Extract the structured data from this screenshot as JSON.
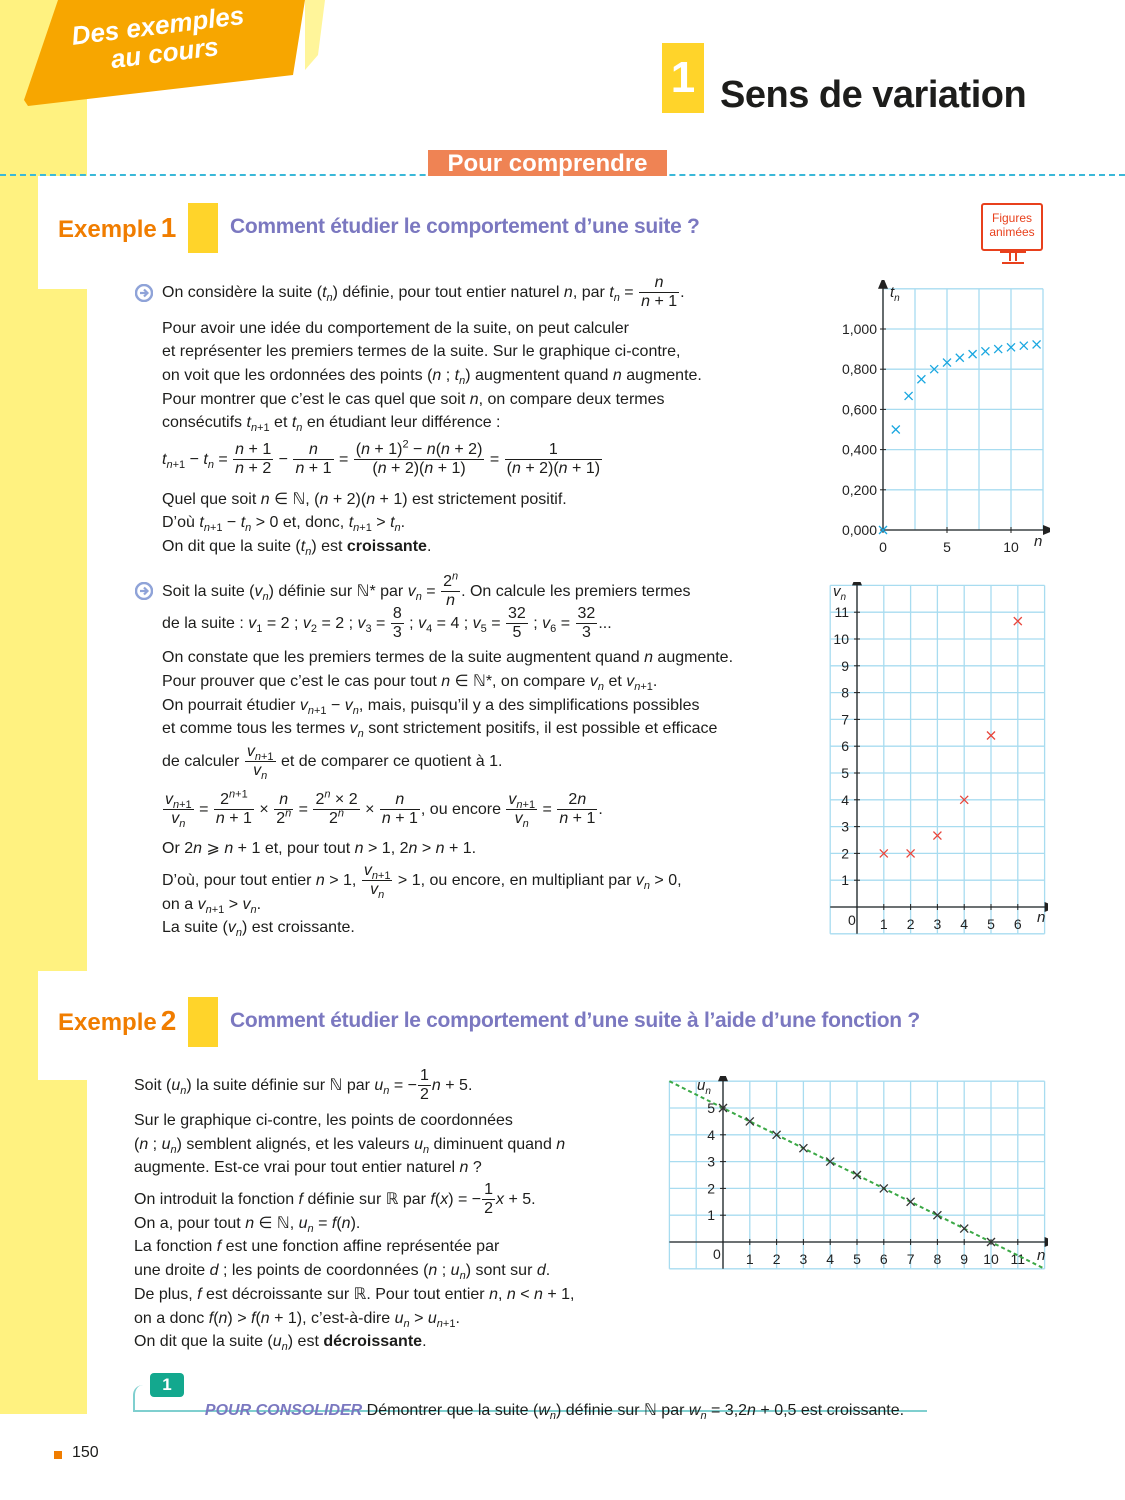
{
  "banner": {
    "line1": "Des exemples",
    "line2": "au cours",
    "color": "#f7a600"
  },
  "section": {
    "number": "1",
    "title": "Sens de variation"
  },
  "pour_comprendre": "Pour comprendre",
  "figures_animees": {
    "line1": "Figures",
    "line2": "animées",
    "icon": "monitor-icon"
  },
  "example1": {
    "label": "Exemple",
    "number": "1",
    "title": "Comment étudier le comportement d’une suite ?",
    "block1": [
      "On considère la suite (@i{t}_{@i{n}}) définie, pour tout entier naturel @i{n}, par @i{t}_{@i{n}} = @f{@i{n}}{@i{n} + 1}.",
      "Pour avoir une idée du comportement de la suite, on peut calculer",
      "et représenter les premiers termes de la suite. Sur le graphique ci-contre,",
      "on voit que les ordonnées des points (@i{n} ; @i{t}_{@i{n}}) augmentent quand @i{n} augmente.",
      "Pour montrer que c’est le cas quel que soit @i{n}, on compare deux termes",
      "consécutifs @i{t}_{@i{n}+1} et @i{t}_{@i{n}} en étudiant leur différence :",
      "@i{t}_{@i{n}+1} − @i{t}_{@i{n}} = @f{@i{n} + 1}{@i{n} + 2} − @f{@i{n}}{@i{n} + 1} = @f{(@i{n} + 1)^{2} − @i{n}(@i{n} + 2)}{(@i{n} + 2)(@i{n} + 1)} = @f{1}{(@i{n} + 2)(@i{n} + 1)}",
      "Quel que soit @i{n} ∈ ℕ, (@i{n} + 2)(@i{n} + 1) est strictement positif.",
      "D’où @i{t}_{@i{n}+1} − @i{t}_{@i{n}} > 0 et, donc, @i{t}_{@i{n}+1} > @i{t}_{@i{n}}.",
      "On dit que la suite (@i{t}_{@i{n}}) est @b{croissante}."
    ],
    "block2": [
      "Soit la suite (@i{v}_{@i{n}}) définie sur ℕ* par @i{v}_{@i{n}} = @f{2^{@i{n}}}{@i{n}}. On calcule les premiers termes",
      "de la suite : @i{v}_{1} = 2 ; @i{v}_{2} = 2 ; @i{v}_{3} = @f{8}{3} ; @i{v}_{4} = 4 ; @i{v}_{5} = @f{32}{5} ; @i{v}_{6} = @f{32}{3}...",
      "On constate que les premiers termes de la suite augmentent quand @i{n} augmente.",
      "Pour prouver que c’est le cas pour tout @i{n} ∈ ℕ*, on compare @i{v}_{@i{n}} et @i{v}_{@i{n}+1}.",
      "On pourrait étudier @i{v}_{@i{n}+1} − @i{v}_{@i{n}}, mais, puisqu’il y a des simplifications possibles",
      "et comme tous les termes @i{v}_{@i{n}} sont strictement positifs, il est possible et efficace",
      "de calculer @f{@i{v}_{@i{n}+1}}{@i{v}_{@i{n}}} et de comparer ce quotient à 1.",
      "@f{@i{v}_{@i{n}+1}}{@i{v}_{@i{n}}} = @f{2^{@i{n}+1}}{@i{n} + 1} × @f{@i{n}}{2^{@i{n}}} = @f{2^{@i{n}} × 2}{2^{@i{n}}} × @f{@i{n}}{@i{n} + 1}, ou encore @f{@i{v}_{@i{n}+1}}{@i{v}_{@i{n}}} = @f{2@i{n}}{@i{n} + 1}.",
      "Or 2@i{n} ⩾ @i{n} + 1 et, pour tout @i{n} > 1, 2@i{n} > @i{n} + 1.",
      "D’où, pour tout entier @i{n} > 1, @f{@i{v}_{@i{n}+1}}{@i{v}_{@i{n}}} > 1, ou encore, en multipliant par @i{v}_{@i{n}} > 0,",
      "on a @i{v}_{@i{n}+1} > @i{v}_{@i{n}}.",
      "La suite (@i{v}_{@i{n}}) est croissante."
    ]
  },
  "example2": {
    "label": "Exemple",
    "number": "2",
    "title": "Comment étudier le comportement d’une suite à l’aide d’une fonction ?",
    "block": [
      "Soit (@i{u}_{@i{n}}) la suite définie sur ℕ par @i{u}_{@i{n}} = −@f{1}{2}@i{n} + 5.",
      "Sur le graphique ci-contre, les points de coordonnées",
      "(@i{n} ; @i{u}_{@i{n}}) semblent alignés, et les valeurs @i{u}_{@i{n}} diminuent quand @i{n}",
      "augmente. Est-ce vrai pour tout entier naturel @i{n} ?",
      "On introduit la fonction @i{f} définie sur ℝ par @i{f}(@i{x}) = −@f{1}{2}@i{x} + 5.",
      "On a, pour tout @i{n} ∈ ℕ, @i{u}_{@i{n}} = @i{f}(@i{n}).",
      "La fonction @i{f} est une fonction affine représentée par",
      "une droite @i{d} ; les points de coordonnées (@i{n} ; @i{u}_{@i{n}}) sont sur @i{d}.",
      "De plus, @i{f} est décroissante sur ℝ. Pour tout entier @i{n}, @i{n} < @i{n} + 1,",
      "on a donc @i{f}(@i{n}) > @i{f}(@i{n} + 1), c’est-à-dire @i{u}_{@i{n}} > @i{u}_{@i{n}+1}.",
      "On dit que la suite (@i{u}_{@i{n}}) est @b{décroissante}."
    ]
  },
  "consolider": {
    "number": "1",
    "keyword": "POUR CONSOLIDER",
    "text": " Démontrer que la suite (@i{w}_{@i{n}}) définie sur ℕ par @i{w}_{@i{n}} = 3,2@i{n} + 0,5 est croissante."
  },
  "page_number": "150",
  "colors": {
    "orange": "#f07d00",
    "purple": "#7b78c0",
    "yellow": "#ffd42a",
    "teal": "#13a88e",
    "grid": "#a8dcf0"
  },
  "chart_data": [
    {
      "type": "scatter",
      "ylabel": "t",
      "ylabel_sub": "n",
      "xlabel": "n",
      "xlim": [
        0,
        12.5
      ],
      "ylim": [
        0,
        1.2
      ],
      "grid": true,
      "grid_x_step": 2.5,
      "grid_y_step": 0.2,
      "xticks": [
        0,
        5,
        10
      ],
      "xtick_labels": [
        "0",
        "5",
        "10"
      ],
      "yticks": [
        0,
        0.2,
        0.4,
        0.6,
        0.8,
        1.0
      ],
      "ytick_labels": [
        "0,000",
        "0,200",
        "0,400",
        "0,600",
        "0,800",
        "1,000"
      ],
      "marker": "x",
      "color": "#1aa7e0",
      "x": [
        0,
        1,
        2,
        3,
        4,
        5,
        6,
        7,
        8,
        9,
        10,
        11,
        12
      ],
      "y": [
        0,
        0.5,
        0.667,
        0.75,
        0.8,
        0.833,
        0.857,
        0.875,
        0.889,
        0.9,
        0.909,
        0.917,
        0.923
      ]
    },
    {
      "type": "scatter",
      "ylabel": "v",
      "ylabel_sub": "n",
      "xlabel": "n",
      "origin_label": "0",
      "xlim": [
        -1,
        7
      ],
      "ylim": [
        -1,
        12
      ],
      "grid": true,
      "grid_x_step": 1,
      "grid_y_step": 1,
      "xticks": [
        1,
        2,
        3,
        4,
        5,
        6
      ],
      "xtick_labels": [
        "1",
        "2",
        "3",
        "4",
        "5",
        "6"
      ],
      "yticks": [
        1,
        2,
        3,
        4,
        5,
        6,
        7,
        8,
        9,
        10,
        11
      ],
      "ytick_labels": [
        "1",
        "2",
        "3",
        "4",
        "5",
        "6",
        "7",
        "8",
        "9",
        "10",
        "11"
      ],
      "marker": "x",
      "color": "#e8463c",
      "x": [
        1,
        2,
        3,
        4,
        5,
        6
      ],
      "y": [
        2,
        2,
        2.667,
        4,
        6.4,
        10.667
      ]
    },
    {
      "type": "scatter",
      "ylabel": "u",
      "ylabel_sub": "n",
      "xlabel": "n",
      "origin_label": "0",
      "xlim": [
        -2,
        12
      ],
      "ylim": [
        -1,
        6
      ],
      "grid": true,
      "grid_x_step": 1,
      "grid_y_step": 1,
      "xticks": [
        1,
        2,
        3,
        4,
        5,
        6,
        7,
        8,
        9,
        10,
        11
      ],
      "xtick_labels": [
        "1",
        "2",
        "3",
        "4",
        "5",
        "6",
        "7",
        "8",
        "9",
        "10",
        "11"
      ],
      "yticks": [
        1,
        2,
        3,
        4,
        5
      ],
      "ytick_labels": [
        "1",
        "2",
        "3",
        "4",
        "5"
      ],
      "marker": "x",
      "color": "#333333",
      "x": [
        0,
        1,
        2,
        3,
        4,
        5,
        6,
        7,
        8,
        9,
        10
      ],
      "y": [
        5,
        4.5,
        4,
        3.5,
        3,
        2.5,
        2,
        1.5,
        1,
        0.5,
        0
      ],
      "line": {
        "slope": -0.5,
        "intercept": 5,
        "style": "dashed",
        "color": "#3aa845"
      }
    }
  ]
}
